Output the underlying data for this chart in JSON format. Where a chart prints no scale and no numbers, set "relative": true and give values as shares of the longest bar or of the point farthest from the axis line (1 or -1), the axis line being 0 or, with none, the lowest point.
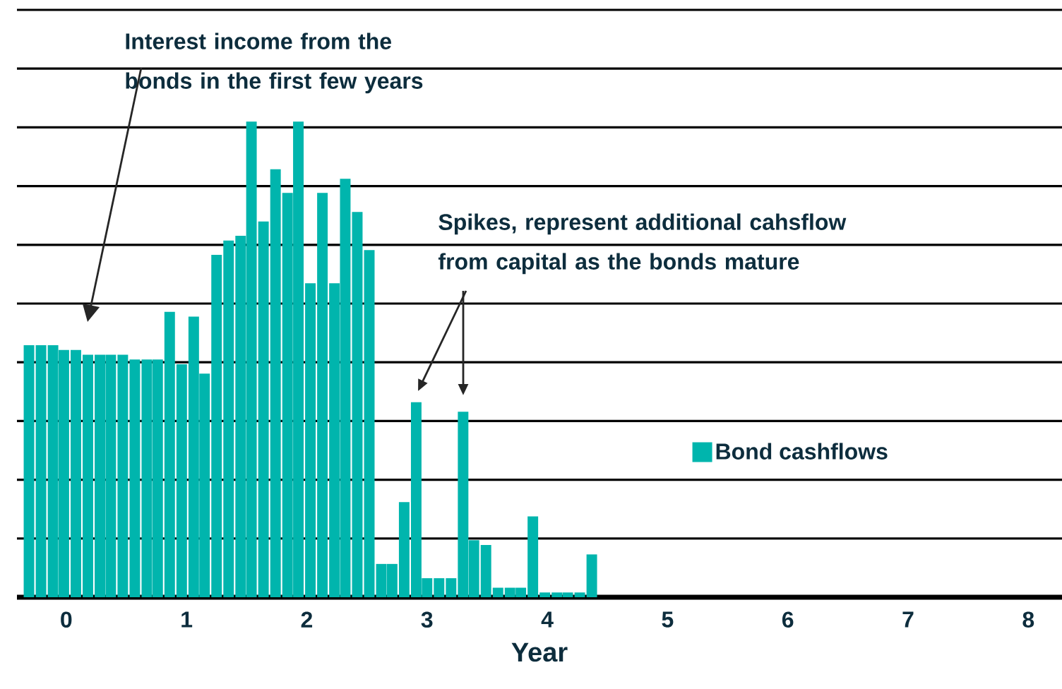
{
  "chart_data": {
    "type": "bar",
    "relative": true,
    "x": [
      -0.31,
      -0.21,
      -0.11,
      -0.02,
      0.08,
      0.18,
      0.28,
      0.37,
      0.47,
      0.57,
      0.67,
      0.76,
      0.86,
      0.96,
      1.06,
      1.15,
      1.25,
      1.35,
      1.45,
      1.54,
      1.64,
      1.74,
      1.84,
      1.93,
      2.03,
      2.13,
      2.23,
      2.32,
      2.42,
      2.52,
      2.62,
      2.71,
      2.81,
      2.91,
      3.0,
      3.1,
      3.2,
      3.3,
      3.39,
      3.49,
      3.59,
      3.69,
      3.78,
      3.88,
      3.98,
      4.08,
      4.17,
      4.27,
      4.37
    ],
    "series": [
      {
        "name": "Bond cashflows",
        "color": "#00b5ad",
        "values": [
          0.53,
          0.53,
          0.53,
          0.52,
          0.52,
          0.51,
          0.51,
          0.51,
          0.51,
          0.5,
          0.5,
          0.5,
          0.6,
          0.49,
          0.59,
          0.47,
          0.72,
          0.75,
          0.76,
          1,
          0.79,
          0.9,
          0.85,
          1,
          0.66,
          0.85,
          0.66,
          0.88,
          0.81,
          0.73,
          0.07,
          0.07,
          0.2,
          0.41,
          0.04,
          0.04,
          0.04,
          0.39,
          0.12,
          0.11,
          0.02,
          0.02,
          0.02,
          0.17,
          0.01,
          0.01,
          0.01,
          0.01,
          0.09
        ]
      }
    ],
    "xlim": [
      -0.41,
      8.28
    ],
    "xticks": [
      0,
      1,
      2,
      3,
      4,
      5,
      6,
      7,
      8
    ],
    "xlabel": "Year",
    "annotations": [
      "Interest income from the bonds in the first few years",
      "Spikes, represent additional cahsflow from capital as the bonds mature"
    ],
    "grid": "y",
    "legend": "right"
  }
}
